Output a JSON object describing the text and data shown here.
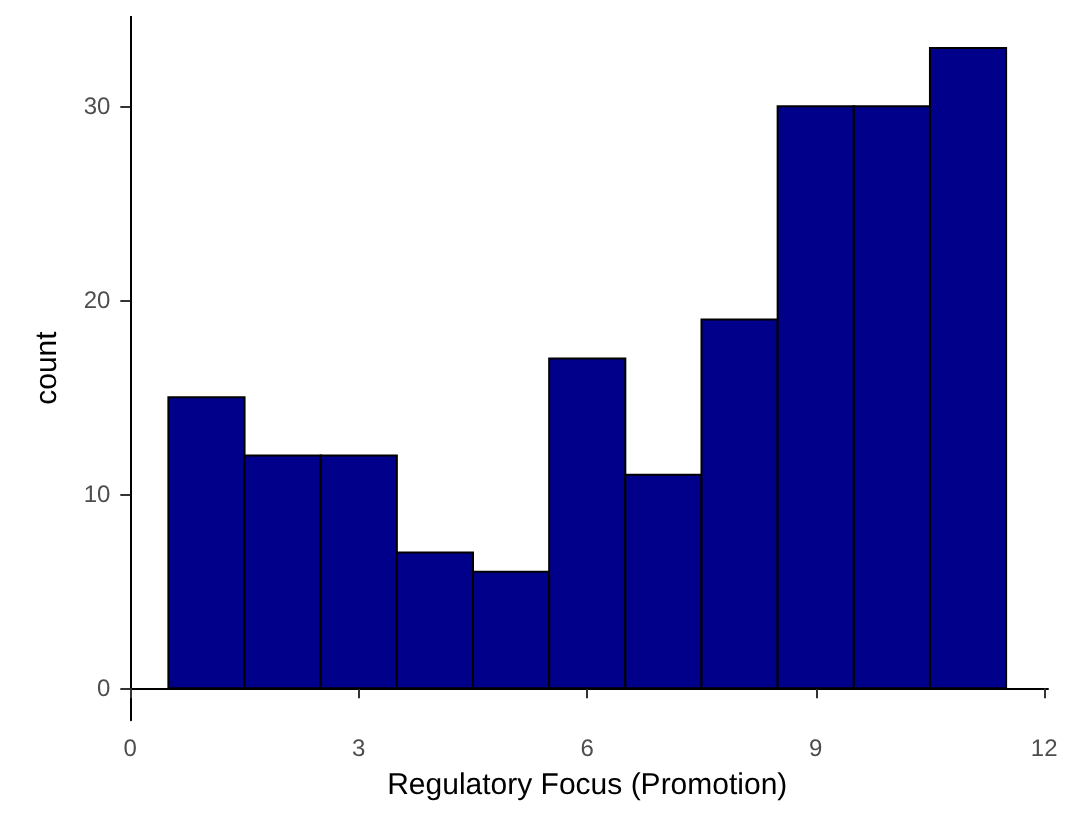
{
  "chart_data": {
    "type": "histogram",
    "xlabel": "Regulatory Focus (Promotion)",
    "ylabel": "count",
    "bins": [
      0.5,
      1.5,
      2.5,
      3.5,
      4.5,
      5.5,
      6.5,
      7.5,
      8.5,
      9.5,
      10.5,
      11.5
    ],
    "values": [
      15,
      12,
      12,
      7,
      6,
      17,
      11,
      19,
      30,
      30,
      33
    ],
    "color": "#00008b",
    "xlim": [
      -0.05,
      12.05
    ],
    "xticks": [
      0,
      3,
      6,
      9,
      12
    ],
    "ylim": [
      -1.65,
      34.65
    ],
    "yticks": [
      0,
      10,
      20,
      30
    ],
    "grid": false
  }
}
